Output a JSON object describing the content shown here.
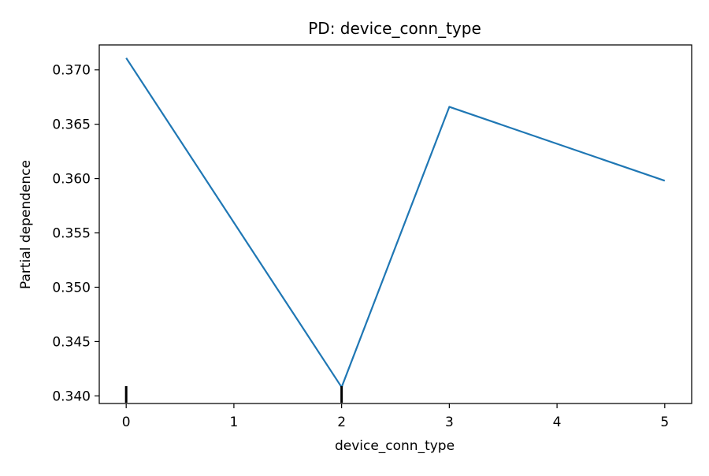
{
  "chart_data": {
    "type": "line",
    "title": "PD: device_conn_type",
    "xlabel": "device_conn_type",
    "ylabel": "Partial dependence",
    "xlim": [
      -0.25,
      5.25
    ],
    "ylim": [
      0.3393,
      0.3723
    ],
    "x_ticks": [
      0,
      1,
      2,
      3,
      4,
      5
    ],
    "x_tick_labels": [
      "0",
      "1",
      "2",
      "3",
      "4",
      "5"
    ],
    "y_ticks": [
      0.34,
      0.345,
      0.35,
      0.355,
      0.36,
      0.365,
      0.37
    ],
    "y_tick_labels": [
      "0.340",
      "0.345",
      "0.350",
      "0.355",
      "0.360",
      "0.365",
      "0.370"
    ],
    "grid": false,
    "series": [
      {
        "x": [
          0,
          2,
          3,
          5
        ],
        "y": [
          0.3711,
          0.3408,
          0.3666,
          0.3598
        ],
        "color": "#1f77b4"
      }
    ],
    "rug": {
      "x": [
        0,
        2
      ],
      "color": "#000000"
    }
  }
}
